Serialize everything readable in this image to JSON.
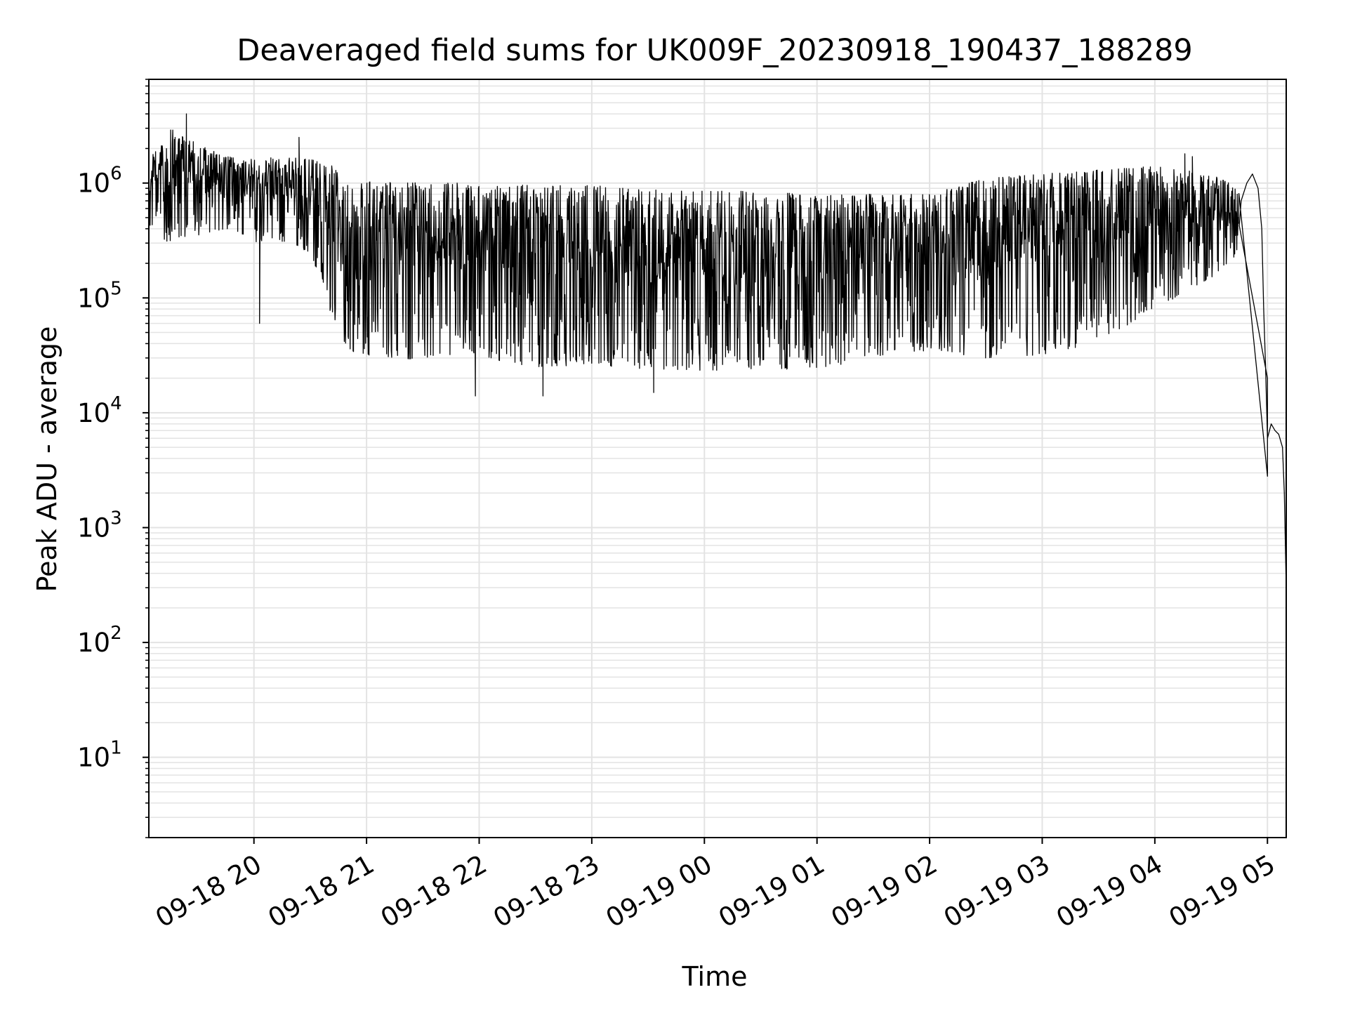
{
  "chart_data": {
    "type": "line",
    "title": "Deaveraged field sums for UK009F_20230918_190437_188289",
    "xlabel": "Time",
    "ylabel": "Peak ADU - average",
    "yscale": "log",
    "xlim": [
      "2023-09-18 19:04",
      "2023-09-19 05:10"
    ],
    "ylim": [
      2,
      8000000
    ],
    "grid": true,
    "line_color": "#000000",
    "grid_color": "#e3e3e3",
    "x_ticks": [
      {
        "label": "09-18 20",
        "time": "2023-09-18 20:00"
      },
      {
        "label": "09-18 21",
        "time": "2023-09-18 21:00"
      },
      {
        "label": "09-18 22",
        "time": "2023-09-18 22:00"
      },
      {
        "label": "09-18 23",
        "time": "2023-09-18 23:00"
      },
      {
        "label": "09-19 00",
        "time": "2023-09-19 00:00"
      },
      {
        "label": "09-19 01",
        "time": "2023-09-19 01:00"
      },
      {
        "label": "09-19 02",
        "time": "2023-09-19 02:00"
      },
      {
        "label": "09-19 03",
        "time": "2023-09-19 03:00"
      },
      {
        "label": "09-19 04",
        "time": "2023-09-19 04:00"
      },
      {
        "label": "09-19 05",
        "time": "2023-09-19 05:00"
      }
    ],
    "y_ticks": [
      {
        "base": "10",
        "exp": "1",
        "value": 10
      },
      {
        "base": "10",
        "exp": "2",
        "value": 100
      },
      {
        "base": "10",
        "exp": "3",
        "value": 1000
      },
      {
        "base": "10",
        "exp": "4",
        "value": 10000
      },
      {
        "base": "10",
        "exp": "5",
        "value": 100000
      },
      {
        "base": "10",
        "exp": "6",
        "value": 1000000
      }
    ],
    "series": [
      {
        "envelope": [
          {
            "time": "2023-09-18 19:04",
            "low": 400000,
            "high": 1600000
          },
          {
            "time": "2023-09-18 19:15",
            "low": 300000,
            "high": 3000000
          },
          {
            "time": "2023-09-18 19:30",
            "low": 350000,
            "high": 2200000
          },
          {
            "time": "2023-09-18 19:45",
            "low": 400000,
            "high": 1700000
          },
          {
            "time": "2023-09-18 20:00",
            "low": 300000,
            "high": 1600000
          },
          {
            "time": "2023-09-18 20:15",
            "low": 300000,
            "high": 1700000
          },
          {
            "time": "2023-09-18 20:30",
            "low": 250000,
            "high": 1600000
          },
          {
            "time": "2023-09-18 20:40",
            "low": 80000,
            "high": 1500000
          },
          {
            "time": "2023-09-18 20:50",
            "low": 35000,
            "high": 1000000
          },
          {
            "time": "2023-09-18 21:00",
            "low": 32000,
            "high": 1050000
          },
          {
            "time": "2023-09-18 21:30",
            "low": 28000,
            "high": 1000000
          },
          {
            "time": "2023-09-18 22:00",
            "low": 30000,
            "high": 1000000
          },
          {
            "time": "2023-09-18 22:30",
            "low": 25000,
            "high": 950000
          },
          {
            "time": "2023-09-18 23:00",
            "low": 26000,
            "high": 950000
          },
          {
            "time": "2023-09-18 23:30",
            "low": 24000,
            "high": 900000
          },
          {
            "time": "2023-09-19 00:00",
            "low": 23000,
            "high": 850000
          },
          {
            "time": "2023-09-19 00:30",
            "low": 24000,
            "high": 850000
          },
          {
            "time": "2023-09-19 01:00",
            "low": 24000,
            "high": 800000
          },
          {
            "time": "2023-09-19 01:30",
            "low": 30000,
            "high": 800000
          },
          {
            "time": "2023-09-19 02:00",
            "low": 35000,
            "high": 800000
          },
          {
            "time": "2023-09-19 02:30",
            "low": 30000,
            "high": 1100000
          },
          {
            "time": "2023-09-19 03:00",
            "low": 32000,
            "high": 1200000
          },
          {
            "time": "2023-09-19 03:30",
            "low": 40000,
            "high": 1300000
          },
          {
            "time": "2023-09-19 04:00",
            "low": 80000,
            "high": 1400000
          },
          {
            "time": "2023-09-19 04:30",
            "low": 150000,
            "high": 1200000
          },
          {
            "time": "2023-09-19 04:45",
            "low": 250000,
            "high": 900000
          }
        ],
        "tail": [
          {
            "time": "2023-09-19 04:46",
            "value": 700000
          },
          {
            "time": "2023-09-19 04:49",
            "value": 1000000
          },
          {
            "time": "2023-09-19 04:52",
            "value": 1200000
          },
          {
            "time": "2023-09-19 04:55",
            "value": 900000
          },
          {
            "time": "2023-09-19 04:57",
            "value": 400000
          },
          {
            "time": "2023-09-19 04:58",
            "value": 80000
          },
          {
            "time": "2023-09-19 04:59",
            "value": 25000
          },
          {
            "time": "2023-09-19 05:00",
            "value": 6000
          },
          {
            "time": "2023-09-19 05:02",
            "value": 8000
          },
          {
            "time": "2023-09-19 05:04",
            "value": 7000
          },
          {
            "time": "2023-09-19 05:06",
            "value": 6500
          },
          {
            "time": "2023-09-19 05:08",
            "value": 5000
          },
          {
            "time": "2023-09-19 05:09",
            "value": 2000
          },
          {
            "time": "2023-09-19 05:10",
            "value": 300
          }
        ],
        "spikes": [
          {
            "time": "2023-09-18 19:24",
            "value": 4000000
          },
          {
            "time": "2023-09-18 19:18",
            "value": 2500000
          },
          {
            "time": "2023-09-18 20:24",
            "value": 2500000
          },
          {
            "time": "2023-09-18 19:38",
            "value": 1300000
          },
          {
            "time": "2023-09-18 21:58",
            "value": 14000
          },
          {
            "time": "2023-09-18 22:34",
            "value": 14000
          },
          {
            "time": "2023-09-18 23:33",
            "value": 15000
          },
          {
            "time": "2023-09-19 04:16",
            "value": 1800000
          },
          {
            "time": "2023-09-19 04:20",
            "value": 1700000
          },
          {
            "time": "2023-09-18 20:03",
            "value": 60000
          },
          {
            "time": "2023-09-19 05:00",
            "value": 20000
          },
          {
            "time": "2023-09-19 05:00",
            "value": 2800
          }
        ]
      }
    ]
  }
}
